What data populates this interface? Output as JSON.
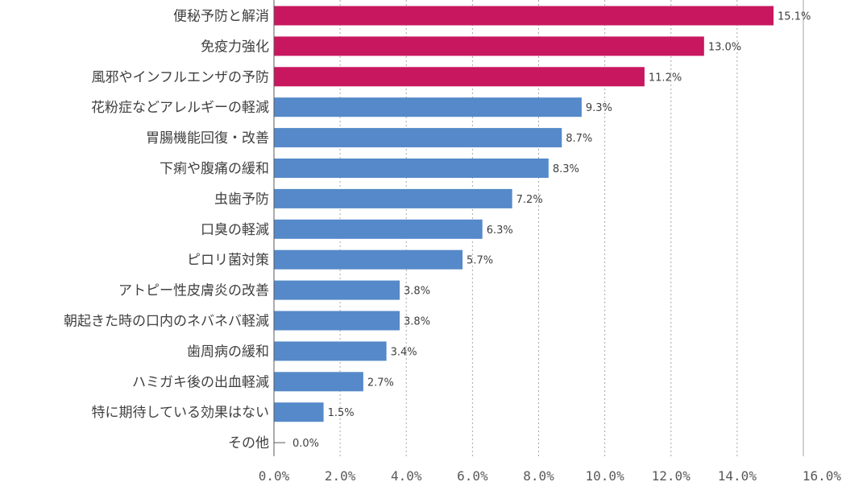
{
  "chart_data": {
    "type": "bar",
    "orientation": "horizontal",
    "categories": [
      "便秘予防と解消",
      "免疫力強化",
      "風邪やインフルエンザの予防",
      "花粉症などアレルギーの軽減",
      "胃腸機能回復・改善",
      "下痢や腹痛の緩和",
      "虫歯予防",
      "口臭の軽減",
      "ピロリ菌対策",
      "アトピー性皮膚炎の改善",
      "朝起きた時の口内のネバネバ軽減",
      "歯周病の緩和",
      "ハミガキ後の出血軽減",
      "特に期待している効果はない",
      "その他"
    ],
    "values": [
      15.1,
      13.0,
      11.2,
      9.3,
      8.7,
      8.3,
      7.2,
      6.3,
      5.7,
      3.8,
      3.8,
      3.4,
      2.7,
      1.5,
      0.0
    ],
    "value_labels": [
      "15.1%",
      "13.0%",
      "11.2%",
      "9.3%",
      "8.7%",
      "8.3%",
      "7.2%",
      "6.3%",
      "5.7%",
      "3.8%",
      "3.8%",
      "3.4%",
      "2.7%",
      "1.5%",
      "0.0%"
    ],
    "highlight_count": 3,
    "colors": {
      "highlight": "#c8175f",
      "normal": "#5589c9",
      "gridline": "#a6a6a6",
      "axis": "#595959"
    },
    "xlim": [
      0,
      16
    ],
    "x_ticks": [
      0,
      2,
      4,
      6,
      8,
      10,
      12,
      14,
      16
    ],
    "x_tick_labels": [
      "0.0%",
      "2.0%",
      "4.0%",
      "6.0%",
      "8.0%",
      "10.0%",
      "12.0%",
      "14.0%",
      "16.0%"
    ],
    "grid": "vertical-dotted",
    "legend": "none"
  }
}
